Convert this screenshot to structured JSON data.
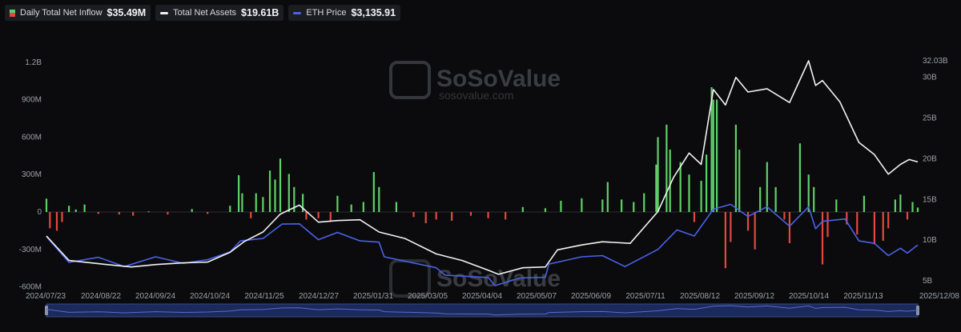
{
  "legend": [
    {
      "label": "Daily Total Net Inflow",
      "value": "$35.49M",
      "icon": "bar-up-down-icon",
      "color": "#5fd068"
    },
    {
      "label": "Total Net Assets",
      "value": "$19.61B",
      "icon": "white-line-icon",
      "color": "#f2f2f2"
    },
    {
      "label": "ETH Price",
      "value": "$3,135.91",
      "icon": "blue-line-icon",
      "color": "#4a62e8"
    }
  ],
  "watermark": {
    "title": "SoSoValue",
    "sub": "sosovalue.com"
  },
  "colors": {
    "inflow_positive": "#5fd068",
    "inflow_negative": "#e5483f",
    "net_assets_line": "#f2f2f2",
    "eth_price_line": "#4a62e8",
    "background": "#0b0b0d",
    "navigator": "#1f2d5e"
  },
  "chart_data": {
    "type": "bar-line-combo",
    "x_tick_labels": [
      "2024/07/23",
      "2024/08/22",
      "2024/09/24",
      "2024/10/24",
      "2024/11/25",
      "2024/12/27",
      "2025/01/31",
      "2025/03/05",
      "2025/04/04",
      "2025/05/07",
      "2025/06/09",
      "2025/07/11",
      "2025/08/12",
      "2025/09/12",
      "2025/10/14",
      "2025/11/13",
      "2025/12/08"
    ],
    "left_axis": {
      "labels": [
        "1.2B",
        "900M",
        "600M",
        "300M",
        "0",
        "-300M",
        "-600M"
      ],
      "ylim": [
        -600000000,
        1200000000
      ]
    },
    "right_axis": {
      "labels": [
        "32.03B",
        "30B",
        "25B",
        "20B",
        "15B",
        "10B",
        "5B"
      ],
      "ticks_billions": [
        32.03,
        30,
        25,
        20,
        15,
        10,
        5
      ],
      "ylim_billions": [
        5,
        32.03
      ]
    },
    "series": [
      {
        "name": "Daily Total Net Inflow",
        "kind": "bar",
        "axis": "left",
        "unit": "M USD",
        "points": [
          [
            "2024/07/23",
            107
          ],
          [
            "2024/07/25",
            -130
          ],
          [
            "2024/07/29",
            -150
          ],
          [
            "2024/08/01",
            -80
          ],
          [
            "2024/08/05",
            50
          ],
          [
            "2024/08/09",
            20
          ],
          [
            "2024/08/14",
            60
          ],
          [
            "2024/08/22",
            -15
          ],
          [
            "2024/09/03",
            -20
          ],
          [
            "2024/09/11",
            -30
          ],
          [
            "2024/09/20",
            5
          ],
          [
            "2024/10/01",
            -20
          ],
          [
            "2024/10/15",
            24
          ],
          [
            "2024/10/24",
            -15
          ],
          [
            "2024/11/06",
            50
          ],
          [
            "2024/11/11",
            295
          ],
          [
            "2024/11/13",
            150
          ],
          [
            "2024/11/18",
            -50
          ],
          [
            "2024/11/21",
            150
          ],
          [
            "2024/11/25",
            120
          ],
          [
            "2024/11/29",
            332
          ],
          [
            "2024/12/02",
            260
          ],
          [
            "2024/12/05",
            428
          ],
          [
            "2024/12/10",
            305
          ],
          [
            "2024/12/13",
            200
          ],
          [
            "2024/12/18",
            145
          ],
          [
            "2024/12/20",
            -60
          ],
          [
            "2024/12/27",
            -50
          ],
          [
            "2025/01/03",
            -80
          ],
          [
            "2025/01/07",
            130
          ],
          [
            "2025/01/15",
            60
          ],
          [
            "2025/01/22",
            80
          ],
          [
            "2025/01/28",
            320
          ],
          [
            "2025/01/31",
            200
          ],
          [
            "2025/02/10",
            80
          ],
          [
            "2025/02/20",
            -40
          ],
          [
            "2025/02/27",
            -90
          ],
          [
            "2025/03/05",
            -60
          ],
          [
            "2025/03/14",
            -70
          ],
          [
            "2025/03/25",
            -30
          ],
          [
            "2025/04/04",
            -50
          ],
          [
            "2025/04/14",
            -60
          ],
          [
            "2025/04/24",
            40
          ],
          [
            "2025/05/07",
            30
          ],
          [
            "2025/05/16",
            90
          ],
          [
            "2025/05/28",
            110
          ],
          [
            "2025/06/09",
            100
          ],
          [
            "2025/06/12",
            240
          ],
          [
            "2025/06/20",
            100
          ],
          [
            "2025/06/27",
            80
          ],
          [
            "2025/07/03",
            150
          ],
          [
            "2025/07/10",
            380
          ],
          [
            "2025/07/11",
            600
          ],
          [
            "2025/07/16",
            700
          ],
          [
            "2025/07/18",
            500
          ],
          [
            "2025/07/24",
            400
          ],
          [
            "2025/07/29",
            300
          ],
          [
            "2025/08/01",
            -80
          ],
          [
            "2025/08/05",
            250
          ],
          [
            "2025/08/08",
            460
          ],
          [
            "2025/08/11",
            1000
          ],
          [
            "2025/08/12",
            900
          ],
          [
            "2025/08/14",
            900
          ],
          [
            "2025/08/19",
            -450
          ],
          [
            "2025/08/22",
            -240
          ],
          [
            "2025/08/25",
            700
          ],
          [
            "2025/08/27",
            500
          ],
          [
            "2025/09/01",
            -150
          ],
          [
            "2025/09/05",
            -300
          ],
          [
            "2025/09/08",
            200
          ],
          [
            "2025/09/12",
            400
          ],
          [
            "2025/09/17",
            200
          ],
          [
            "2025/09/22",
            -60
          ],
          [
            "2025/09/25",
            -250
          ],
          [
            "2025/10/01",
            550
          ],
          [
            "2025/10/06",
            300
          ],
          [
            "2025/10/09",
            200
          ],
          [
            "2025/10/14",
            -420
          ],
          [
            "2025/10/17",
            -200
          ],
          [
            "2025/10/22",
            100
          ],
          [
            "2025/10/28",
            -100
          ],
          [
            "2025/11/03",
            -180
          ],
          [
            "2025/11/07",
            130
          ],
          [
            "2025/11/13",
            -260
          ],
          [
            "2025/11/18",
            -230
          ],
          [
            "2025/11/21",
            -130
          ],
          [
            "2025/11/25",
            100
          ],
          [
            "2025/11/28",
            140
          ],
          [
            "2025/12/02",
            -60
          ],
          [
            "2025/12/05",
            80
          ],
          [
            "2025/12/08",
            35.49
          ]
        ]
      },
      {
        "name": "Total Net Assets",
        "kind": "line",
        "axis": "right",
        "unit": "B USD",
        "points": [
          [
            "2024/07/23",
            10.5
          ],
          [
            "2024/08/05",
            7.5
          ],
          [
            "2024/08/22",
            7.1
          ],
          [
            "2024/09/10",
            6.7
          ],
          [
            "2024/09/24",
            7.0
          ],
          [
            "2024/10/10",
            7.2
          ],
          [
            "2024/10/24",
            7.3
          ],
          [
            "2024/11/06",
            8.5
          ],
          [
            "2024/11/14",
            9.8
          ],
          [
            "2024/11/25",
            11.0
          ],
          [
            "2024/12/05",
            13.2
          ],
          [
            "2024/12/16",
            14.3
          ],
          [
            "2024/12/27",
            12.2
          ],
          [
            "2025/01/07",
            12.4
          ],
          [
            "2025/01/20",
            12.5
          ],
          [
            "2025/01/31",
            11.0
          ],
          [
            "2025/02/15",
            10.2
          ],
          [
            "2025/03/05",
            8.3
          ],
          [
            "2025/03/20",
            7.5
          ],
          [
            "2025/04/04",
            6.3
          ],
          [
            "2025/04/10",
            5.8
          ],
          [
            "2025/04/24",
            6.6
          ],
          [
            "2025/05/07",
            6.7
          ],
          [
            "2025/05/14",
            8.8
          ],
          [
            "2025/05/28",
            9.4
          ],
          [
            "2025/06/09",
            9.8
          ],
          [
            "2025/06/25",
            9.6
          ],
          [
            "2025/07/11",
            13.5
          ],
          [
            "2025/07/20",
            17.7
          ],
          [
            "2025/07/29",
            20.7
          ],
          [
            "2025/08/05",
            19.3
          ],
          [
            "2025/08/12",
            28.5
          ],
          [
            "2025/08/19",
            26.6
          ],
          [
            "2025/08/25",
            30.0
          ],
          [
            "2025/09/01",
            28.2
          ],
          [
            "2025/09/12",
            28.6
          ],
          [
            "2025/09/25",
            26.9
          ],
          [
            "2025/10/06",
            32.03
          ],
          [
            "2025/10/10",
            29.0
          ],
          [
            "2025/10/14",
            29.6
          ],
          [
            "2025/10/24",
            27.0
          ],
          [
            "2025/11/04",
            22.0
          ],
          [
            "2025/11/13",
            20.5
          ],
          [
            "2025/11/21",
            18.1
          ],
          [
            "2025/11/28",
            19.3
          ],
          [
            "2025/12/03",
            19.9
          ],
          [
            "2025/12/08",
            19.61
          ]
        ]
      },
      {
        "name": "ETH Price",
        "kind": "line",
        "axis": "right",
        "unit": "USD",
        "points": [
          [
            "2024/07/23",
            3480
          ],
          [
            "2024/08/05",
            2420
          ],
          [
            "2024/08/22",
            2630
          ],
          [
            "2024/09/06",
            2250
          ],
          [
            "2024/09/24",
            2650
          ],
          [
            "2024/10/10",
            2380
          ],
          [
            "2024/10/24",
            2530
          ],
          [
            "2024/11/06",
            2850
          ],
          [
            "2024/11/12",
            3300
          ],
          [
            "2024/11/25",
            3400
          ],
          [
            "2024/12/06",
            3990
          ],
          [
            "2024/12/16",
            4000
          ],
          [
            "2024/12/27",
            3350
          ],
          [
            "2025/01/07",
            3650
          ],
          [
            "2025/01/20",
            3300
          ],
          [
            "2025/01/31",
            3250
          ],
          [
            "2025/02/03",
            2650
          ],
          [
            "2025/03/05",
            2200
          ],
          [
            "2025/03/10",
            1900
          ],
          [
            "2025/04/04",
            1800
          ],
          [
            "2025/04/08",
            1470
          ],
          [
            "2025/04/22",
            1780
          ],
          [
            "2025/05/07",
            1810
          ],
          [
            "2025/05/09",
            2350
          ],
          [
            "2025/05/28",
            2650
          ],
          [
            "2025/06/09",
            2700
          ],
          [
            "2025/06/22",
            2250
          ],
          [
            "2025/07/11",
            2950
          ],
          [
            "2025/07/22",
            3750
          ],
          [
            "2025/08/01",
            3500
          ],
          [
            "2025/08/12",
            4600
          ],
          [
            "2025/08/22",
            4800
          ],
          [
            "2025/09/01",
            4300
          ],
          [
            "2025/09/12",
            4700
          ],
          [
            "2025/09/25",
            3900
          ],
          [
            "2025/10/06",
            4700
          ],
          [
            "2025/10/10",
            3800
          ],
          [
            "2025/10/14",
            4100
          ],
          [
            "2025/10/27",
            4200
          ],
          [
            "2025/11/04",
            3300
          ],
          [
            "2025/11/13",
            3200
          ],
          [
            "2025/11/21",
            2700
          ],
          [
            "2025/11/28",
            3000
          ],
          [
            "2025/12/02",
            2800
          ],
          [
            "2025/12/08",
            3135.91
          ]
        ]
      }
    ],
    "grid": false,
    "legend_position": "top-left"
  }
}
